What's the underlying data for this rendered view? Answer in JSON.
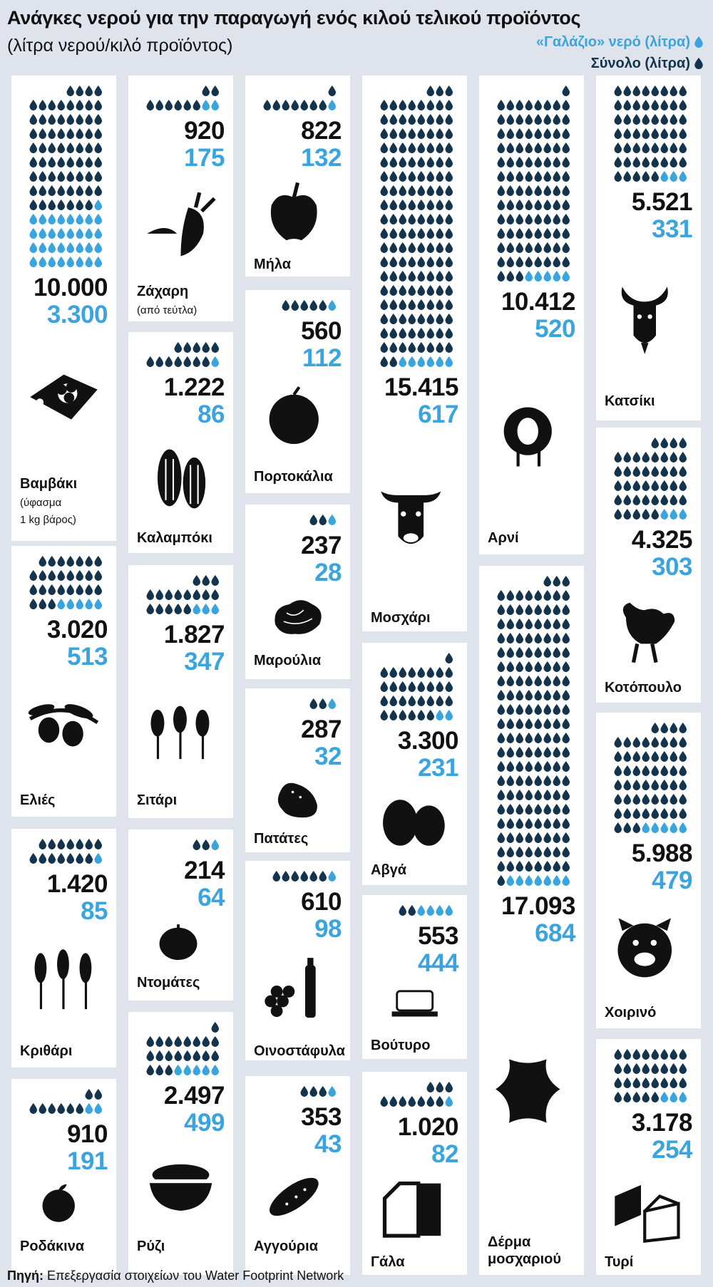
{
  "title": "Ανάγκες νερού για την παραγωγή ενός κιλού τελικού προϊόντος",
  "subtitle": "(λίτρα νερού/κιλό προϊόντος)",
  "legend": {
    "blue_label": "«Γαλάζιο» νερό (λίτρα)",
    "total_label": "Σύνολο (λίτρα)"
  },
  "source": {
    "label": "Πηγή:",
    "text": "Επεξεργασία στοιχείων του Water Footprint Network"
  },
  "colors": {
    "background": "#dfe3ec",
    "card": "#ffffff",
    "total_drop": "#13344c",
    "blue_drop": "#3aa4de",
    "text": "#111111"
  },
  "chart_data": {
    "type": "pictogram",
    "series": [
      {
        "name": "Σύνολο (λίτρα)"
      },
      {
        "name": "«Γαλάζιο» νερό (λίτρα)"
      }
    ],
    "items": [
      {
        "label": "Βαμβάκι",
        "note": [
          "(ύφασμα",
          "1 kg βάρος)"
        ],
        "total": 10000,
        "total_text": "10.000",
        "blue": 3300,
        "blue_text": "3.300",
        "icon": "cotton-fabric-icon"
      },
      {
        "label": "Ελιές",
        "total": 3020,
        "total_text": "3.020",
        "blue": 513,
        "blue_text": "513",
        "icon": "olive-icon"
      },
      {
        "label": "Κριθάρι",
        "total": 1420,
        "total_text": "1.420",
        "blue": 85,
        "blue_text": "85",
        "icon": "barley-icon"
      },
      {
        "label": "Ροδάκινα",
        "total": 910,
        "total_text": "910",
        "blue": 191,
        "blue_text": "191",
        "icon": "peach-icon"
      },
      {
        "label": "Ζάχαρη",
        "note": [
          "(από τεύτλα)"
        ],
        "total": 920,
        "total_text": "920",
        "blue": 175,
        "blue_text": "175",
        "icon": "sugar-beet-icon"
      },
      {
        "label": "Καλαμπόκι",
        "total": 1222,
        "total_text": "1.222",
        "blue": 86,
        "blue_text": "86",
        "icon": "corn-icon"
      },
      {
        "label": "Σιτάρι",
        "total": 1827,
        "total_text": "1.827",
        "blue": 347,
        "blue_text": "347",
        "icon": "wheat-icon"
      },
      {
        "label": "Ντομάτες",
        "total": 214,
        "total_text": "214",
        "blue": 64,
        "blue_text": "64",
        "icon": "tomato-icon"
      },
      {
        "label": "Ρύζι",
        "total": 2497,
        "total_text": "2.497",
        "blue": 499,
        "blue_text": "499",
        "icon": "rice-bowl-icon"
      },
      {
        "label": "Μήλα",
        "total": 822,
        "total_text": "822",
        "blue": 132,
        "blue_text": "132",
        "icon": "apple-icon"
      },
      {
        "label": "Πορτοκάλια",
        "total": 560,
        "total_text": "560",
        "blue": 112,
        "blue_text": "112",
        "icon": "orange-icon"
      },
      {
        "label": "Μαρούλια",
        "total": 237,
        "total_text": "237",
        "blue": 28,
        "blue_text": "28",
        "icon": "lettuce-icon"
      },
      {
        "label": "Πατάτες",
        "total": 287,
        "total_text": "287",
        "blue": 32,
        "blue_text": "32",
        "icon": "potato-icon"
      },
      {
        "label": "Οινοστάφυλα",
        "total": 610,
        "total_text": "610",
        "blue": 98,
        "blue_text": "98",
        "icon": "wine-grapes-icon"
      },
      {
        "label": "Αγγούρια",
        "total": 353,
        "total_text": "353",
        "blue": 43,
        "blue_text": "43",
        "icon": "cucumber-icon"
      },
      {
        "label": "Μοσχάρι",
        "total": 15415,
        "total_text": "15.415",
        "blue": 617,
        "blue_text": "617",
        "icon": "cow-icon"
      },
      {
        "label": "Αβγά",
        "total": 3300,
        "total_text": "3.300",
        "blue": 231,
        "blue_text": "231",
        "icon": "eggs-icon"
      },
      {
        "label": "Βούτυρο",
        "total": 553,
        "total_text": "553",
        "blue": 444,
        "blue_text": "444",
        "icon": "butter-icon"
      },
      {
        "label": "Γάλα",
        "total": 1020,
        "total_text": "1.020",
        "blue": 82,
        "blue_text": "82",
        "icon": "milk-carton-icon"
      },
      {
        "label": "Αρνί",
        "total": 10412,
        "total_text": "10.412",
        "blue": 520,
        "blue_text": "520",
        "icon": "sheep-icon"
      },
      {
        "label": "Δέρμα",
        "label2": "μοσχαριού",
        "total": 17093,
        "total_text": "17.093",
        "blue": 684,
        "blue_text": "684",
        "icon": "leather-hide-icon"
      },
      {
        "label": "Κατσίκι",
        "total": 5521,
        "total_text": "5.521",
        "blue": 331,
        "blue_text": "331",
        "icon": "goat-icon"
      },
      {
        "label": "Κοτόπουλο",
        "total": 4325,
        "total_text": "4.325",
        "blue": 303,
        "blue_text": "303",
        "icon": "chicken-icon"
      },
      {
        "label": "Χοιρινό",
        "total": 5988,
        "total_text": "5.988",
        "blue": 479,
        "blue_text": "479",
        "icon": "pig-icon"
      },
      {
        "label": "Τυρί",
        "total": 3178,
        "total_text": "3.178",
        "blue": 254,
        "blue_text": "254",
        "icon": "cheese-icon"
      }
    ]
  }
}
